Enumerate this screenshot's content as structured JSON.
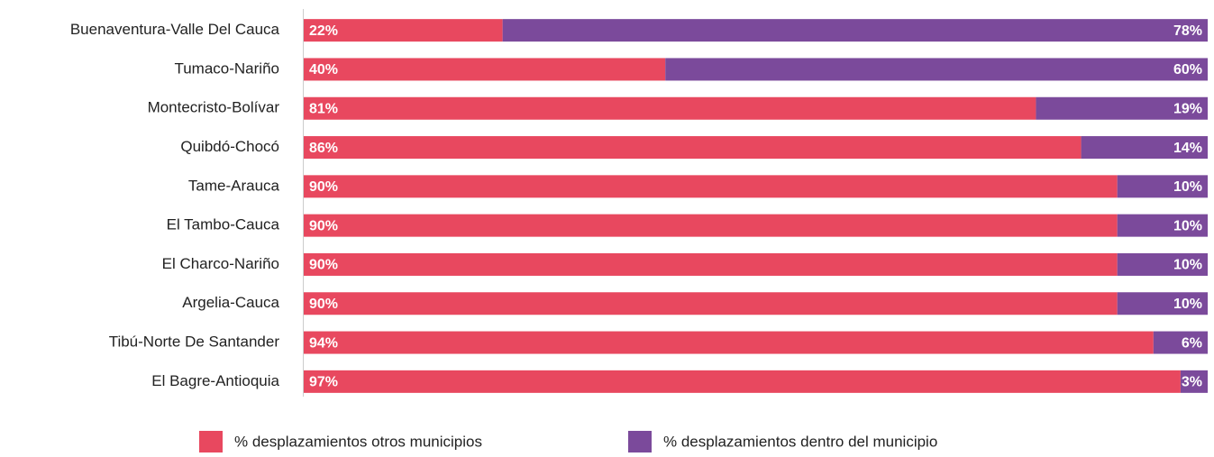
{
  "chart_data": {
    "type": "stacked-bar-horizontal",
    "categories": [
      "Buenaventura-Valle Del Cauca",
      "Tumaco-Nariño",
      "Montecristo-Bolívar",
      "Quibdó-Chocó",
      "Tame-Arauca",
      "El Tambo-Cauca",
      "El Charco-Nariño",
      "Argelia-Cauca",
      "Tibú-Norte De Santander",
      "El Bagre-Antioquia"
    ],
    "series": [
      {
        "name": "% desplazamientos otros municipios",
        "color": "#e8485f",
        "values": [
          22,
          40,
          81,
          86,
          90,
          90,
          90,
          90,
          94,
          97
        ],
        "value_labels": [
          "22%",
          "40%",
          "81%",
          "86%",
          "90%",
          "90%",
          "90%",
          "90%",
          "94%",
          "97%"
        ]
      },
      {
        "name": "% desplazamientos dentro del municipio",
        "color": "#7b4a9b",
        "values": [
          78,
          60,
          19,
          14,
          10,
          10,
          10,
          10,
          6,
          3
        ],
        "value_labels": [
          "78%",
          "60%",
          "19%",
          "14%",
          "10%",
          "10%",
          "10%",
          "10%",
          "6%",
          "3%"
        ]
      }
    ],
    "xlim": [
      0,
      100
    ]
  }
}
